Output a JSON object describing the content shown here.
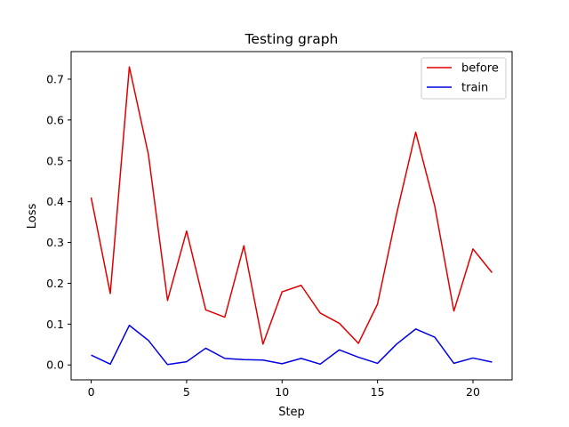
{
  "chart_data": {
    "type": "line",
    "title": "Testing graph",
    "xlabel": "Step",
    "ylabel": "Loss",
    "xlim": [
      -1.05,
      22.05
    ],
    "ylim": [
      -0.0365,
      0.7675
    ],
    "xticks": [
      0,
      5,
      10,
      15,
      20
    ],
    "yticks": [
      0.0,
      0.1,
      0.2,
      0.3,
      0.4,
      0.5,
      0.6,
      0.7
    ],
    "xtick_labels": [
      "0",
      "5",
      "10",
      "15",
      "20"
    ],
    "ytick_labels": [
      "0.0",
      "0.1",
      "0.2",
      "0.3",
      "0.4",
      "0.5",
      "0.6",
      "0.7"
    ],
    "legend_position": "top-right",
    "grid": false,
    "x": [
      0,
      1,
      2,
      3,
      4,
      5,
      6,
      7,
      8,
      9,
      10,
      11,
      12,
      13,
      14,
      15,
      16,
      17,
      18,
      19,
      20,
      21
    ],
    "series": [
      {
        "name": "before",
        "color": "#e00000",
        "values": [
          0.41,
          0.175,
          0.73,
          0.515,
          0.158,
          0.328,
          0.135,
          0.117,
          0.292,
          0.051,
          0.179,
          0.195,
          0.127,
          0.102,
          0.053,
          0.149,
          0.37,
          0.57,
          0.389,
          0.132,
          0.284,
          0.226
        ]
      },
      {
        "name": "train",
        "color": "#0000e0",
        "values": [
          0.024,
          0.002,
          0.097,
          0.06,
          0.001,
          0.008,
          0.041,
          0.016,
          0.013,
          0.012,
          0.003,
          0.016,
          0.002,
          0.037,
          0.019,
          0.004,
          0.051,
          0.088,
          0.068,
          0.004,
          0.017,
          0.007
        ]
      }
    ]
  }
}
